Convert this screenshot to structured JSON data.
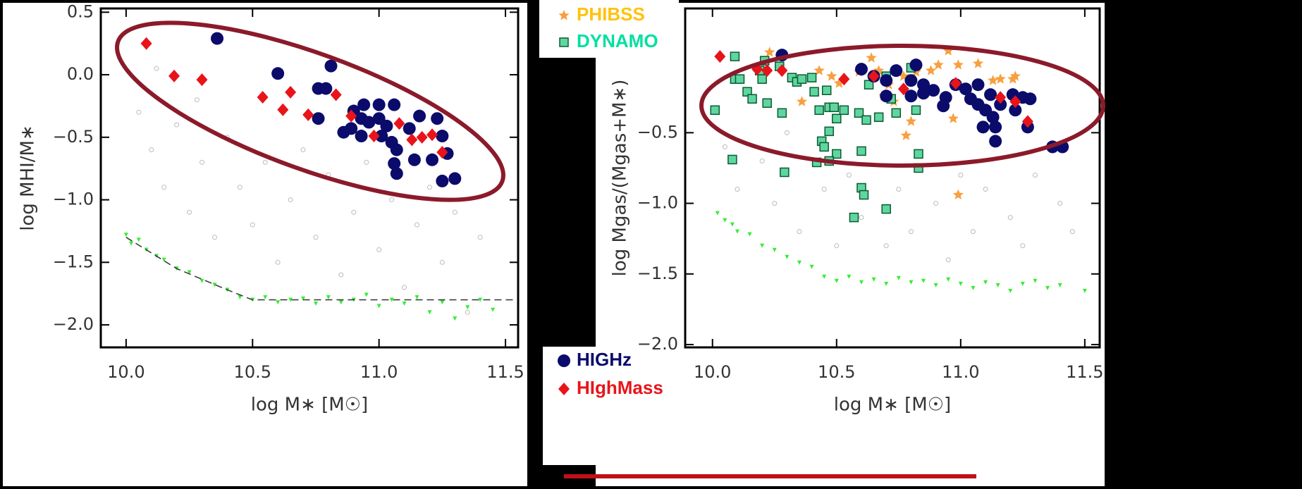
{
  "chart_data": [
    {
      "type": "scatter",
      "x_label": "log M∗ [M☉]",
      "y_label": "log MHI/M∗",
      "xlim": [
        9.9,
        11.55
      ],
      "ylim": [
        -2.18,
        0.53
      ],
      "xticks": [
        {
          "value": 10,
          "label": "10.0"
        },
        {
          "value": 10.5,
          "label": "10.5"
        },
        {
          "value": 11,
          "label": "11.0"
        },
        {
          "value": 11.5,
          "label": "11.5"
        }
      ],
      "yticks": [
        {
          "value": 0.5,
          "label": "0.5"
        },
        {
          "value": 0,
          "label": "0.0"
        },
        {
          "value": -0.5,
          "label": "−0.5"
        },
        {
          "value": -1,
          "label": "−1.0"
        },
        {
          "value": -1.5,
          "label": "−1.5"
        },
        {
          "value": -2,
          "label": "−2.0"
        }
      ],
      "series": [
        {
          "marker": "circle-open",
          "color": "#bbbbbb",
          "x": [
            10.05,
            10.1,
            10.15,
            10.2,
            10.25,
            10.3,
            10.35,
            10.4,
            10.45,
            10.5,
            10.55,
            10.6,
            10.65,
            10.7,
            10.75,
            10.8,
            10.85,
            10.9,
            10.95,
            11.0,
            11.05,
            11.1,
            11.15,
            11.2,
            11.25,
            11.3,
            11.35,
            11.4,
            10.12,
            10.28
          ],
          "values": [
            -0.3,
            -0.6,
            -0.9,
            -0.4,
            -1.1,
            -0.7,
            -1.3,
            -0.5,
            -0.9,
            -1.2,
            -0.7,
            -1.5,
            -1.0,
            -0.6,
            -1.3,
            -0.8,
            -1.6,
            -1.1,
            -0.7,
            -1.4,
            -1.0,
            -1.7,
            -1.2,
            -0.9,
            -1.5,
            -1.1,
            -1.9,
            -1.3,
            0.05,
            -0.2
          ]
        },
        {
          "marker": "triangle-down",
          "color": "#33ee33",
          "x": [
            10.0,
            10.02,
            10.05,
            10.08,
            10.12,
            10.15,
            10.2,
            10.25,
            10.3,
            10.35,
            10.4,
            10.45,
            10.5,
            10.55,
            10.6,
            10.65,
            10.7,
            10.75,
            10.8,
            10.85,
            10.9,
            10.95,
            11.0,
            11.05,
            11.1,
            11.15,
            11.2,
            11.25,
            11.3,
            11.35,
            11.4,
            11.45
          ],
          "values": [
            -1.28,
            -1.35,
            -1.32,
            -1.4,
            -1.45,
            -1.48,
            -1.55,
            -1.58,
            -1.65,
            -1.68,
            -1.72,
            -1.78,
            -1.8,
            -1.78,
            -1.82,
            -1.8,
            -1.79,
            -1.83,
            -1.78,
            -1.82,
            -1.8,
            -1.76,
            -1.85,
            -1.8,
            -1.83,
            -1.78,
            -1.9,
            -1.82,
            -1.95,
            -1.86,
            -1.8,
            -1.88
          ]
        },
        {
          "marker": "dashed-line",
          "color": "#333333",
          "x": [
            10.0,
            10.2,
            10.4,
            10.5,
            11.55
          ],
          "values": [
            -1.3,
            -1.55,
            -1.72,
            -1.8,
            -1.8
          ]
        },
        {
          "name": "HIGHz",
          "marker": "circle",
          "color": "#0b0b6b",
          "x": [
            10.36,
            10.6,
            10.81,
            10.76,
            10.79,
            10.76,
            10.86,
            10.9,
            10.94,
            11.0,
            11.06,
            10.93,
            10.96,
            11.0,
            11.03,
            10.89,
            10.93,
            11.01,
            11.05,
            11.07,
            11.06,
            11.07,
            11.12,
            11.16,
            11.14,
            11.23,
            11.25,
            11.21,
            11.27,
            11.25,
            11.3
          ],
          "values": [
            0.29,
            0.01,
            0.07,
            -0.11,
            -0.11,
            -0.35,
            -0.46,
            -0.29,
            -0.24,
            -0.24,
            -0.24,
            -0.35,
            -0.38,
            -0.35,
            -0.41,
            -0.43,
            -0.49,
            -0.49,
            -0.54,
            -0.6,
            -0.71,
            -0.79,
            -0.43,
            -0.33,
            -0.68,
            -0.35,
            -0.49,
            -0.68,
            -0.63,
            -0.85,
            -0.83
          ]
        },
        {
          "name": "HIghMass",
          "marker": "diamond",
          "color": "#e8141a",
          "x": [
            10.08,
            10.19,
            10.3,
            10.54,
            10.65,
            10.62,
            10.72,
            10.83,
            10.89,
            10.98,
            11.08,
            11.13,
            11.17,
            11.21,
            11.25
          ],
          "values": [
            0.25,
            -0.01,
            -0.04,
            -0.18,
            -0.14,
            -0.28,
            -0.32,
            -0.16,
            -0.33,
            -0.49,
            -0.39,
            -0.52,
            -0.5,
            -0.48,
            -0.62
          ]
        }
      ]
    },
    {
      "type": "scatter",
      "x_label": "log M∗ [M☉]",
      "y_label": "log Mgas/(Mgas+M∗)",
      "xlim": [
        9.89,
        11.56
      ],
      "ylim": [
        -2.02,
        0.38
      ],
      "xticks": [
        {
          "value": 10,
          "label": "10.0"
        },
        {
          "value": 10.5,
          "label": "10.5"
        },
        {
          "value": 11,
          "label": "11.0"
        },
        {
          "value": 11.5,
          "label": "11.5"
        }
      ],
      "yticks": [
        {
          "value": -0.5,
          "label": "−0.5"
        },
        {
          "value": -1,
          "label": "−1.0"
        },
        {
          "value": -1.5,
          "label": "−1.5"
        },
        {
          "value": -2,
          "label": "−2.0"
        }
      ],
      "series": [
        {
          "marker": "circle-open",
          "color": "#bbbbbb",
          "x": [
            10.05,
            10.1,
            10.2,
            10.25,
            10.3,
            10.35,
            10.45,
            10.5,
            10.55,
            10.6,
            10.7,
            10.75,
            10.8,
            10.9,
            10.95,
            11.0,
            11.05,
            11.1,
            11.2,
            11.25,
            11.3,
            11.4,
            11.45
          ],
          "values": [
            -0.6,
            -0.9,
            -0.7,
            -1.0,
            -0.5,
            -1.2,
            -0.9,
            -1.3,
            -0.8,
            -1.1,
            -1.3,
            -0.9,
            -1.2,
            -1.0,
            -1.4,
            -0.8,
            -1.2,
            -0.9,
            -1.1,
            -1.3,
            -0.8,
            -1.0,
            -1.2
          ]
        },
        {
          "marker": "triangle-down",
          "color": "#33ee33",
          "x": [
            10.02,
            10.05,
            10.08,
            10.1,
            10.15,
            10.2,
            10.25,
            10.3,
            10.35,
            10.4,
            10.45,
            10.5,
            10.55,
            10.6,
            10.65,
            10.7,
            10.75,
            10.8,
            10.85,
            10.9,
            10.95,
            11.0,
            11.05,
            11.1,
            11.15,
            11.2,
            11.25,
            11.3,
            11.35,
            11.4,
            11.5
          ],
          "values": [
            -1.07,
            -1.12,
            -1.15,
            -1.2,
            -1.22,
            -1.3,
            -1.33,
            -1.38,
            -1.42,
            -1.45,
            -1.52,
            -1.55,
            -1.52,
            -1.56,
            -1.54,
            -1.57,
            -1.53,
            -1.56,
            -1.55,
            -1.58,
            -1.54,
            -1.57,
            -1.6,
            -1.56,
            -1.58,
            -1.62,
            -1.57,
            -1.55,
            -1.6,
            -1.58,
            -1.62
          ]
        },
        {
          "name": "PHIBSS",
          "marker": "star",
          "color": "#f7a040",
          "legend_text_color": "#ffc20e",
          "x": [
            10.23,
            10.43,
            10.48,
            10.51,
            10.59,
            10.64,
            10.67,
            10.71,
            10.77,
            10.82,
            10.88,
            10.91,
            10.95,
            10.99,
            11.07,
            11.13,
            11.16,
            11.21,
            11.22,
            10.69,
            10.73,
            10.8,
            10.97,
            10.99,
            10.78,
            10.36,
            11.12
          ],
          "values": [
            0.07,
            -0.06,
            -0.1,
            -0.15,
            -0.07,
            0.03,
            -0.06,
            -0.16,
            -0.1,
            -0.07,
            -0.06,
            -0.02,
            0.08,
            -0.02,
            -0.01,
            -0.13,
            -0.12,
            -0.12,
            -0.1,
            -0.24,
            -0.28,
            -0.42,
            -0.4,
            -0.94,
            -0.52,
            -0.28,
            -0.24
          ]
        },
        {
          "name": "DYNAMO",
          "marker": "square",
          "color": "#5fd6a0",
          "legend_text_color": "#00e0a0",
          "x": [
            10.01,
            10.09,
            10.09,
            10.14,
            10.11,
            10.16,
            10.21,
            10.2,
            10.27,
            10.32,
            10.34,
            10.36,
            10.4,
            10.41,
            10.46,
            10.47,
            10.43,
            10.49,
            10.28,
            10.22,
            10.08,
            10.29,
            10.44,
            10.47,
            10.5,
            10.53,
            10.59,
            10.62,
            10.63,
            10.7,
            10.72,
            10.8,
            10.74,
            10.82,
            10.45,
            10.5,
            10.47,
            10.6,
            10.6,
            10.61,
            10.7,
            10.57,
            10.42,
            10.67,
            10.83,
            10.83,
            10.19
          ],
          "values": [
            -0.34,
            0.04,
            -0.12,
            -0.21,
            -0.12,
            -0.26,
            0.01,
            -0.12,
            -0.03,
            -0.11,
            -0.14,
            -0.12,
            -0.11,
            -0.21,
            -0.2,
            -0.32,
            -0.34,
            -0.32,
            -0.36,
            -0.29,
            -0.69,
            -0.78,
            -0.56,
            -0.49,
            -0.4,
            -0.34,
            -0.36,
            -0.41,
            -0.16,
            -0.1,
            -0.26,
            -0.04,
            -0.36,
            -0.34,
            -0.6,
            -0.65,
            -0.7,
            -0.63,
            -0.89,
            -0.94,
            -1.04,
            -1.1,
            -0.71,
            -0.39,
            -0.65,
            -0.75,
            -0.06
          ]
        },
        {
          "name": "HIGHz",
          "marker": "circle",
          "color": "#0b0b6b",
          "legend_text_color": "#0b0b6b",
          "x": [
            10.28,
            10.6,
            10.74,
            10.82,
            10.65,
            10.7,
            10.8,
            10.85,
            10.7,
            10.8,
            10.85,
            10.89,
            10.94,
            10.98,
            11.02,
            11.07,
            11.12,
            11.04,
            11.07,
            11.1,
            11.13,
            11.16,
            11.21,
            11.25,
            11.28,
            11.22,
            11.14,
            11.14,
            11.27,
            11.09,
            10.93,
            11.37,
            11.41
          ],
          "values": [
            0.05,
            -0.05,
            -0.06,
            -0.02,
            -0.1,
            -0.13,
            -0.13,
            -0.22,
            -0.24,
            -0.24,
            -0.16,
            -0.2,
            -0.25,
            -0.16,
            -0.19,
            -0.16,
            -0.23,
            -0.26,
            -0.3,
            -0.34,
            -0.39,
            -0.3,
            -0.23,
            -0.25,
            -0.26,
            -0.34,
            -0.46,
            -0.56,
            -0.46,
            -0.46,
            -0.31,
            -0.6,
            -0.6
          ]
        },
        {
          "name": "HIghMass",
          "marker": "diamond",
          "color": "#e8141a",
          "legend_text_color": "#e8141a",
          "x": [
            10.03,
            10.18,
            10.22,
            10.28,
            10.53,
            10.65,
            10.77,
            10.98,
            11.16,
            11.22,
            11.27
          ],
          "values": [
            0.04,
            -0.05,
            -0.06,
            -0.06,
            -0.12,
            -0.1,
            -0.19,
            -0.15,
            -0.25,
            -0.28,
            -0.42
          ]
        }
      ]
    }
  ]
}
